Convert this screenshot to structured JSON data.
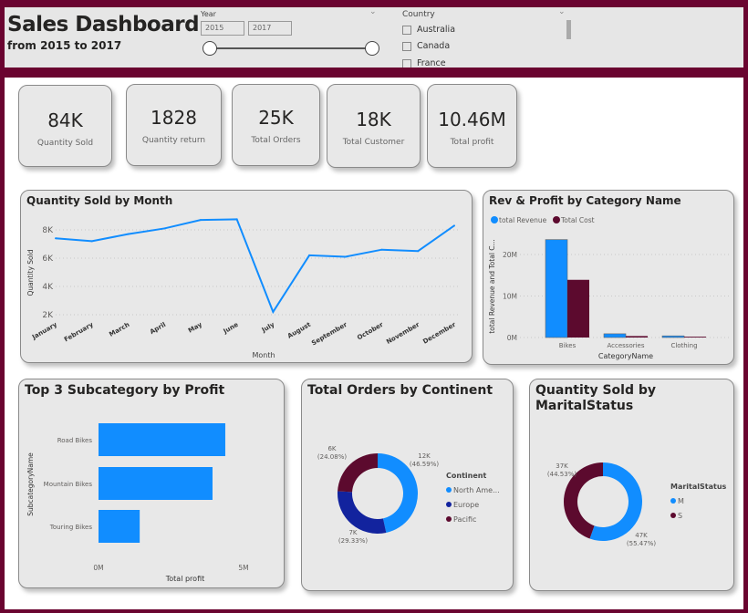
{
  "header": {
    "title": "Sales Dashboard",
    "subtitle": "from 2015 to 2017",
    "year": {
      "label": "Year",
      "from": "2015",
      "to": "2017",
      "range_min": 2015,
      "range_max": 2017
    },
    "country": {
      "label": "Country",
      "options": [
        "Australia",
        "Canada",
        "France"
      ]
    }
  },
  "kpis": [
    {
      "value": "84K",
      "label": "Quantity Sold"
    },
    {
      "value": "1828",
      "label": "Quantity return"
    },
    {
      "value": "25K",
      "label": "Total Orders"
    },
    {
      "value": "18K",
      "label": "Total Customer"
    },
    {
      "value": "10.46M",
      "label": "Total profit"
    }
  ],
  "colors": {
    "blue": "#118dff",
    "navy": "#12239e",
    "maroon": "#5c0a2e",
    "header_bg": "#6a0430"
  },
  "chart_data": [
    {
      "id": "line",
      "type": "line",
      "title": "Quantity Sold by Month",
      "xlabel": "Month",
      "ylabel": "Quantity Sold",
      "categories": [
        "January",
        "February",
        "March",
        "April",
        "May",
        "June",
        "July",
        "August",
        "September",
        "October",
        "November",
        "December"
      ],
      "values": [
        7400,
        7200,
        7700,
        8100,
        8700,
        8750,
        2200,
        6200,
        6100,
        6600,
        6500,
        8300
      ],
      "yticks": [
        "2K",
        "4K",
        "6K",
        "8K"
      ],
      "ytick_values": [
        2000,
        4000,
        6000,
        8000
      ],
      "grid": true
    },
    {
      "id": "bar",
      "type": "bar",
      "title": "Rev & Profit by Category Name",
      "xlabel": "CategoryName",
      "ylabel": "total Revenue and Total C...",
      "categories": [
        "Bikes",
        "Accessories",
        "Clothing"
      ],
      "series": [
        {
          "name": "total Revenue",
          "values": [
            23.6,
            0.9,
            0.4
          ]
        },
        {
          "name": "Total Cost",
          "values": [
            13.9,
            0.35,
            0.2
          ]
        }
      ],
      "units": "M",
      "yticks": [
        "0M",
        "10M",
        "20M"
      ],
      "ytick_values": [
        0,
        10,
        20
      ],
      "legend": "top-left",
      "grid": true
    },
    {
      "id": "hbar",
      "type": "bar",
      "orientation": "horizontal",
      "title": "Top 3 Subcategory by Profit",
      "xlabel": "Total profit",
      "ylabel": "SubcategoryName",
      "categories": [
        "Road Bikes",
        "Mountain Bikes",
        "Touring Bikes"
      ],
      "values": [
        4.37,
        3.93,
        1.42
      ],
      "units": "M",
      "xticks": [
        "0M",
        "5M"
      ],
      "xtick_values": [
        0,
        5
      ]
    },
    {
      "id": "donut1",
      "type": "pie",
      "title": "Total Orders by Continent",
      "legend_title": "Continent",
      "categories": [
        "North Ame...",
        "Europe",
        "Pacific"
      ],
      "values": [
        46.59,
        29.33,
        24.08
      ],
      "labels": [
        "12K",
        "7K",
        "6K"
      ],
      "pct_labels": [
        "(46.59%)",
        "(29.33%)",
        "(24.08%)"
      ],
      "legend": "right"
    },
    {
      "id": "donut2",
      "type": "pie",
      "title": "Quantity Sold by MaritalStatus",
      "legend_title": "MaritalStatus",
      "categories": [
        "M",
        "S"
      ],
      "values": [
        55.47,
        44.53
      ],
      "labels": [
        "47K",
        "37K"
      ],
      "pct_labels": [
        "(55.47%)",
        "(44.53%)"
      ],
      "legend": "right"
    }
  ]
}
